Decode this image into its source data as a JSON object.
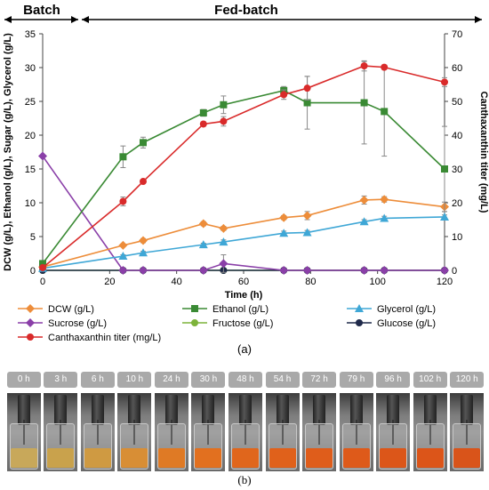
{
  "chart_data": {
    "type": "line",
    "phases": {
      "batch": "Batch",
      "fed_batch": "Fed-batch"
    },
    "xlabel": "Time (h)",
    "ylabel_left": "DCW (g/L), Ethanol (g/L), Sugar (g/L), Glycerol (g/L)",
    "ylabel_right": "Canthaxanthin titer (mg/L)",
    "xlim": [
      0,
      120
    ],
    "ylim_left": [
      0,
      35
    ],
    "ylim_right": [
      0,
      70
    ],
    "x_ticks": [
      0,
      20,
      40,
      60,
      80,
      100,
      120
    ],
    "y_ticks_left": [
      0,
      5,
      10,
      15,
      20,
      25,
      30,
      35
    ],
    "y_ticks_right": [
      0,
      10,
      20,
      30,
      40,
      50,
      60,
      70
    ],
    "grid": false,
    "legend_position": "bottom",
    "series": [
      {
        "name": "DCW (g/L)",
        "axis": "left",
        "color": "#ed8d3a",
        "marker": "diamond",
        "x": [
          0,
          24,
          30,
          48,
          54,
          72,
          79,
          96,
          102,
          120
        ],
        "y": [
          0.5,
          3.7,
          4.4,
          6.9,
          6.2,
          7.8,
          8.1,
          10.4,
          10.5,
          9.4
        ],
        "err": [
          0.1,
          0.2,
          0.3,
          0.3,
          0.3,
          0.3,
          0.6,
          0.6,
          0.4,
          0.7
        ]
      },
      {
        "name": "Ethanol (g/L)",
        "axis": "left",
        "color": "#3a8a34",
        "marker": "square",
        "x": [
          0,
          24,
          30,
          48,
          54,
          72,
          79,
          96,
          102,
          120
        ],
        "y": [
          1.0,
          16.8,
          18.9,
          23.3,
          24.5,
          26.6,
          24.8,
          24.8,
          23.5,
          15.0
        ],
        "err": [
          0.2,
          1.6,
          0.8,
          0.5,
          1.3,
          0.6,
          3.9,
          6.1,
          6.6,
          6.3
        ]
      },
      {
        "name": "Glycerol (g/L)",
        "axis": "left",
        "color": "#3fa7d6",
        "marker": "triangle",
        "x": [
          0,
          24,
          30,
          48,
          54,
          72,
          79,
          96,
          102,
          120
        ],
        "y": [
          0.3,
          2.1,
          2.6,
          3.8,
          4.2,
          5.5,
          5.6,
          7.2,
          7.7,
          7.9
        ],
        "err": [
          0.1,
          0.2,
          0.2,
          0.2,
          0.3,
          0.3,
          0.3,
          0.3,
          0.3,
          0.3
        ]
      },
      {
        "name": "Sucrose (g/L)",
        "axis": "left",
        "color": "#8a3fa8",
        "marker": "diamond",
        "x": [
          0,
          24,
          30,
          48,
          54,
          72,
          79,
          96,
          102,
          120
        ],
        "y": [
          16.9,
          0,
          0,
          0,
          1.0,
          0,
          0,
          0,
          0,
          0
        ],
        "err": [
          0,
          0,
          0,
          0,
          1.3,
          0,
          0,
          0,
          0,
          0
        ]
      },
      {
        "name": "Fructose (g/L)",
        "axis": "left",
        "color": "#7db33a",
        "marker": "circle",
        "x": [
          0,
          24,
          30,
          48,
          54,
          72,
          79,
          96,
          102,
          120
        ],
        "y": [
          0,
          0,
          0,
          0,
          0,
          0,
          0,
          0,
          0,
          0
        ],
        "err": [
          0,
          0,
          0,
          0,
          0,
          0,
          0,
          0,
          0,
          0
        ]
      },
      {
        "name": "Glucose (g/L)",
        "axis": "left",
        "color": "#1f2a4a",
        "marker": "circle",
        "x": [
          0,
          24,
          30,
          48,
          54,
          72,
          79,
          96,
          102,
          120
        ],
        "y": [
          0,
          0,
          0,
          0,
          0,
          0,
          0,
          0,
          0,
          0
        ],
        "err": [
          0,
          0,
          0,
          0,
          0,
          0,
          0,
          0,
          0,
          0
        ]
      },
      {
        "name": "Canthaxanthin titer (mg/L)",
        "axis": "right",
        "color": "#d92a2a",
        "marker": "circle",
        "x": [
          0,
          24,
          30,
          48,
          54,
          72,
          79,
          96,
          102,
          120
        ],
        "y": [
          0.8,
          20.4,
          26.3,
          43.3,
          44.1,
          52.0,
          53.9,
          60.5,
          60.1,
          55.7
        ],
        "err": [
          0.3,
          1.3,
          0.5,
          0.6,
          1.4,
          1.4,
          3.5,
          1.5,
          0.6,
          1.3
        ]
      }
    ]
  },
  "panel_a_label": "(a)",
  "panel_b_label": "(b)",
  "photo_panel": {
    "labels": [
      "0 h",
      "3 h",
      "6 h",
      "10 h",
      "24 h",
      "30 h",
      "48 h",
      "54 h",
      "72 h",
      "79 h",
      "96 h",
      "102 h",
      "120 h"
    ],
    "broth_colors": [
      "#c8a85a",
      "#c9a24c",
      "#cf9a42",
      "#d88e35",
      "#df7a25",
      "#e2701f",
      "#e0661c",
      "#e0611b",
      "#df5d1b",
      "#de5a1a",
      "#dc5619",
      "#dc5519",
      "#d9541a"
    ]
  }
}
